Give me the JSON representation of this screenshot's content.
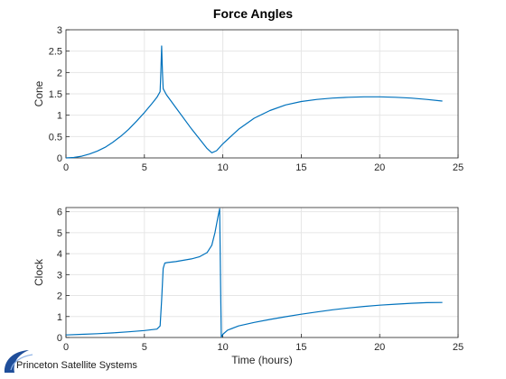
{
  "figure": {
    "title": "Force Angles"
  },
  "colors": {
    "series": "#0072bd",
    "logo": "#1f4e9a"
  },
  "logo": {
    "text": "Princeton Satellite Systems"
  },
  "chart_data": [
    {
      "type": "line",
      "title": "Force Angles",
      "xlabel": "",
      "ylabel": "Cone",
      "xlim": [
        0,
        25
      ],
      "ylim": [
        0,
        3
      ],
      "xticks": [
        0,
        5,
        10,
        15,
        20,
        25
      ],
      "yticks": [
        0,
        0.5,
        1,
        1.5,
        2,
        2.5,
        3
      ],
      "grid": true,
      "series": [
        {
          "x": [
            0,
            0.5,
            1,
            1.5,
            2,
            2.5,
            3,
            3.5,
            4,
            4.5,
            5,
            5.5,
            5.8,
            6.0,
            6.05,
            6.1,
            6.15,
            6.2,
            6.4,
            7,
            8,
            9,
            9.3,
            9.6,
            10,
            11,
            12,
            13,
            14,
            15,
            16,
            17,
            18,
            19,
            20,
            21,
            22,
            23,
            24
          ],
          "y": [
            0.0,
            0.01,
            0.04,
            0.09,
            0.16,
            0.25,
            0.37,
            0.51,
            0.67,
            0.86,
            1.06,
            1.28,
            1.42,
            1.55,
            2.0,
            2.62,
            2.0,
            1.62,
            1.48,
            1.18,
            0.68,
            0.22,
            0.12,
            0.17,
            0.33,
            0.67,
            0.93,
            1.11,
            1.24,
            1.32,
            1.37,
            1.4,
            1.42,
            1.43,
            1.43,
            1.42,
            1.4,
            1.37,
            1.33
          ]
        }
      ]
    },
    {
      "type": "line",
      "title": "",
      "xlabel": "Time (hours)",
      "ylabel": "Clock",
      "xlim": [
        0,
        25
      ],
      "ylim": [
        0,
        6.2
      ],
      "xticks": [
        0,
        5,
        10,
        15,
        20,
        25
      ],
      "yticks": [
        0,
        1,
        2,
        3,
        4,
        5,
        6
      ],
      "grid": true,
      "series": [
        {
          "x": [
            0,
            1,
            2,
            3,
            4,
            5,
            5.8,
            6.0,
            6.1,
            6.2,
            6.3,
            6.5,
            7,
            8,
            8.5,
            9,
            9.3,
            9.5,
            9.7,
            9.8,
            9.85,
            9.9,
            10.0,
            10.3,
            11,
            12,
            13,
            14,
            15,
            16,
            17,
            18,
            19,
            20,
            21,
            22,
            23,
            24
          ],
          "y": [
            0.12,
            0.15,
            0.18,
            0.22,
            0.27,
            0.33,
            0.4,
            0.55,
            1.8,
            3.3,
            3.55,
            3.58,
            3.62,
            3.75,
            3.85,
            4.05,
            4.4,
            5.0,
            5.8,
            6.15,
            3.0,
            0.02,
            0.15,
            0.35,
            0.55,
            0.72,
            0.86,
            0.99,
            1.11,
            1.22,
            1.32,
            1.41,
            1.48,
            1.54,
            1.59,
            1.63,
            1.66,
            1.67
          ]
        }
      ]
    }
  ]
}
